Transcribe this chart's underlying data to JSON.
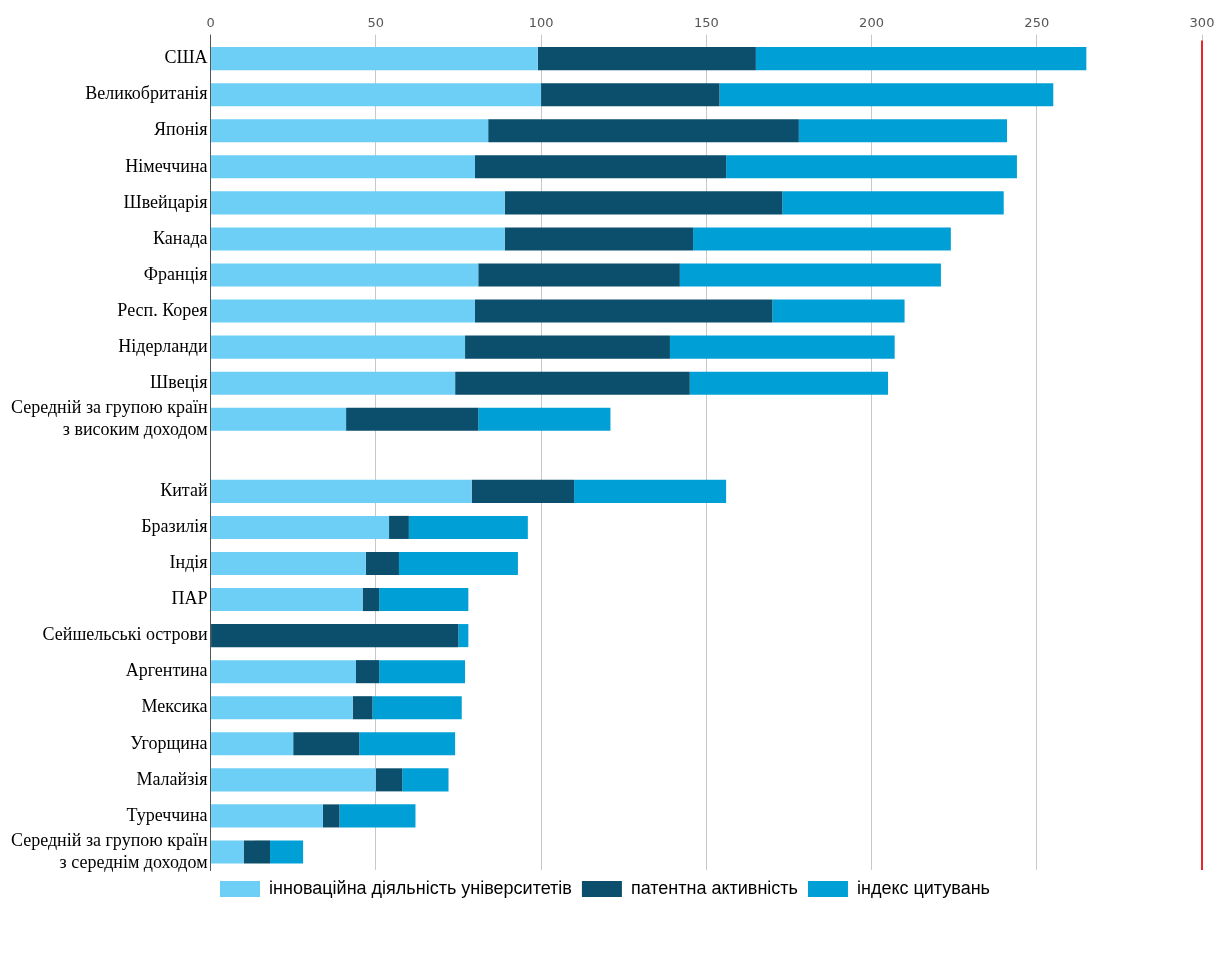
{
  "chart_data": {
    "type": "bar",
    "orientation": "horizontal",
    "stacked": true,
    "categories": [
      "США",
      "Великобританія",
      "Японія",
      "Німеччина",
      "Швейцарія",
      "Канада",
      "Франція",
      "Респ. Корея",
      "Нідерланди",
      "Швеція",
      "Середній за групою країн\nз високим доходом",
      null,
      "Китай",
      "Бразилія",
      "Індія",
      "ПАР",
      "Сейшельські острови",
      "Аргентина",
      "Мексика",
      "Угорщина",
      "Малайзія",
      "Туреччина",
      "Середній за групою країн\nз середнім доходом"
    ],
    "series": [
      {
        "name": "інноваційна діяльність університетів",
        "color": "#6dcff6",
        "values": [
          99,
          100,
          84,
          80,
          89,
          89,
          81,
          80,
          77,
          74,
          41,
          null,
          79,
          54,
          47,
          46,
          0,
          44,
          43,
          25,
          50,
          34,
          10
        ]
      },
      {
        "name": "патентна активність",
        "color": "#0b4f6c",
        "values": [
          66,
          54,
          94,
          76,
          84,
          57,
          61,
          90,
          62,
          71,
          40,
          null,
          31,
          6,
          10,
          5,
          75,
          7,
          6,
          20,
          8,
          5,
          8
        ]
      },
      {
        "name": "індекс цитувань",
        "color": "#00a0d6",
        "values": [
          100,
          101,
          63,
          88,
          67,
          78,
          79,
          40,
          68,
          60,
          40,
          null,
          46,
          36,
          36,
          27,
          3,
          26,
          27,
          29,
          14,
          23,
          10
        ]
      }
    ],
    "xlim": [
      0,
      300
    ],
    "xticks": [
      0,
      50,
      100,
      150,
      200,
      250,
      300
    ],
    "grid": "x",
    "legend": "bottom",
    "ref_lines": [
      {
        "axis": "x",
        "value": 300,
        "color": "#e8272c"
      }
    ]
  }
}
